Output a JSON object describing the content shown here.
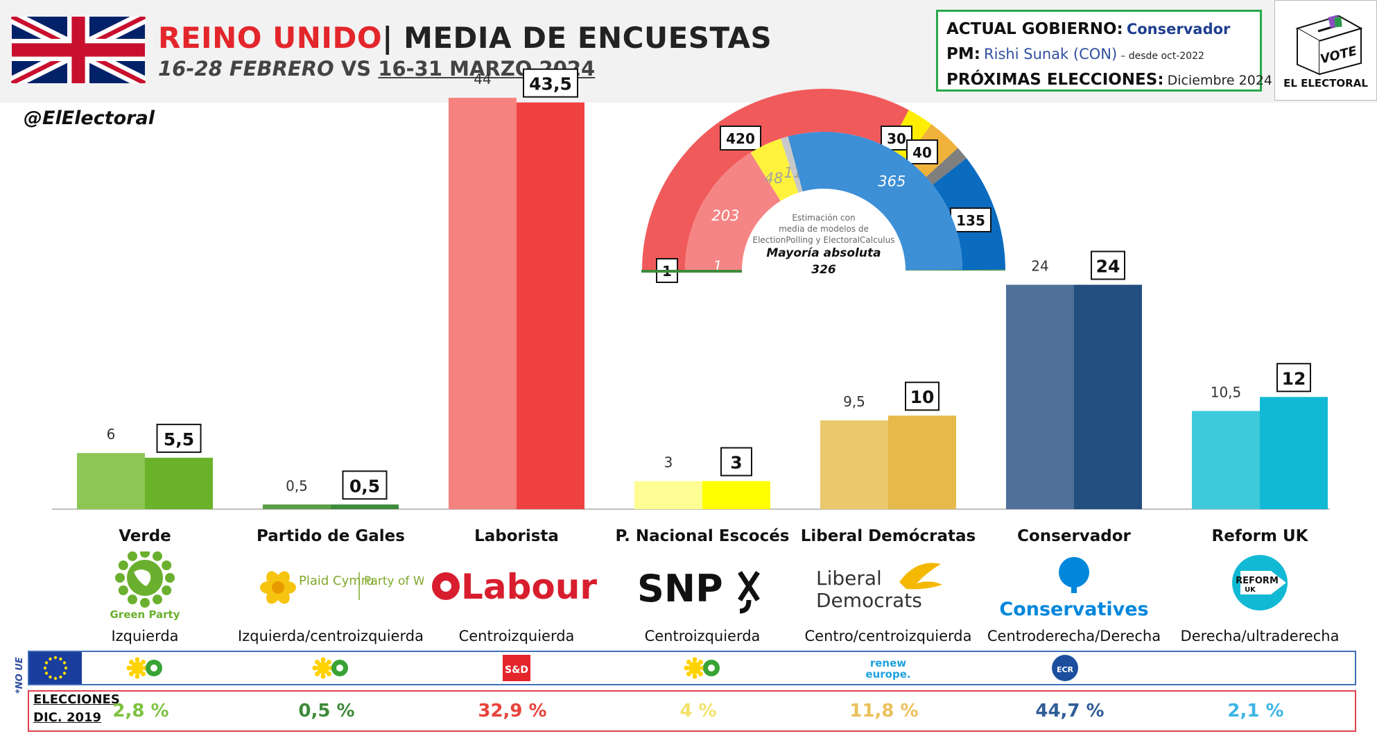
{
  "header": {
    "title_country": "REINO UNIDO",
    "title_separator": "|",
    "title_rest": "MEDIA DE ENCUESTAS",
    "subtitle_a": "16-28 FEBRERO",
    "subtitle_vs": "VS",
    "subtitle_b": "16-31 MARZO 2024"
  },
  "government": {
    "label_gov": "ACTUAL GOBIERNO:",
    "gov_value": "Conservador",
    "label_pm": "PM:",
    "pm_value": "Rishi Sunak (CON)",
    "pm_since": "– desde oct-2022",
    "label_elections": "PRÓXIMAS ELECCIONES:",
    "elections_value": "Diciembre 2024"
  },
  "brand": {
    "vote_text": "VOTE",
    "name": "EL ELECTORAL"
  },
  "handle": "@ElElectoral",
  "chart_data": [
    {
      "type": "bar",
      "categories": [
        "Verde",
        "Partido de Gales",
        "Laborista",
        "P. Nacional Escocés",
        "Liberal Demócratas",
        "Conservador",
        "Reform UK"
      ],
      "series": [
        {
          "values": [
            6,
            0.5,
            44,
            3,
            9.5,
            24,
            10.5
          ],
          "labels": [
            "6",
            "0,5",
            "44",
            "3",
            "9,5",
            "24",
            "10,5"
          ]
        },
        {
          "values": [
            5.5,
            0.5,
            43.5,
            3,
            10,
            24,
            12
          ],
          "labels": [
            "5,5",
            "0,5",
            "43,5",
            "3",
            "10",
            "24",
            "12"
          ]
        }
      ],
      "colors_prev": [
        "#8dc653",
        "#5a9e48",
        "#f5827f",
        "#fdfd94",
        "#eac86c",
        "#4f7098",
        "#3ecadb"
      ],
      "colors_curr": [
        "#6bb22b",
        "#3e8a3a",
        "#ef4140",
        "#ffff00",
        "#e5b94a",
        "#234f80",
        "#12b9d4"
      ],
      "ylim": [
        0,
        46
      ]
    },
    {
      "type": "pie",
      "layout": "hemicycle",
      "outer_ring": [
        {
          "value": 420,
          "label": "420",
          "color": "#f15a5a"
        },
        {
          "value": 30,
          "label": "30",
          "color": "#ffee00"
        },
        {
          "value": 40,
          "label": "40",
          "color": "#f0b23a"
        },
        {
          "value": 15,
          "color": "#7f7f7f"
        },
        {
          "value": 135,
          "label": "135",
          "color": "#0b6cbf"
        },
        {
          "value": 1,
          "label": "1",
          "color": "#3e8a3a"
        }
      ],
      "inner_ring": [
        {
          "value": 203,
          "label": "203",
          "color": "#f58585"
        },
        {
          "value": 48,
          "label": "48",
          "color": "#fff23c"
        },
        {
          "value": 11,
          "label": "11",
          "color": "#c8c8c8"
        },
        {
          "value": 365,
          "label": "365",
          "color": "#3d8fd6"
        },
        {
          "value": 1,
          "label": "1",
          "color": "#3e8a3a"
        }
      ],
      "note": [
        "Estimación con",
        "media de modelos de",
        "ElectionPolling y ElectoralCalculus"
      ],
      "majority_label": "Mayoría absoluta",
      "majority_value": "326"
    }
  ],
  "parties": [
    {
      "name": "Verde",
      "ideology": "Izquierda",
      "logo": "green-party-icon",
      "logo_text": "Green Party",
      "eu_group": "greens-efa-icon",
      "result_2019": "2,8 %",
      "result_color": "#7dc242"
    },
    {
      "name": "Partido de Gales",
      "ideology": "Izquierda/centroizquierda",
      "logo": "plaid-cymru-icon",
      "logo_text_a": "Plaid Cymru",
      "logo_text_b": "Party of Wales",
      "eu_group": "greens-efa-icon",
      "result_2019": "0,5 %",
      "result_color": "#3e8a3a"
    },
    {
      "name": "Laborista",
      "ideology": "Centroizquierda",
      "logo": "labour-rose-icon",
      "logo_text": "Labour",
      "eu_group": "s-and-d-icon",
      "eu_text": "S&D",
      "result_2019": "32,9 %",
      "result_color": "#e8443d"
    },
    {
      "name": "P. Nacional Escocés",
      "ideology": "Centroizquierda",
      "logo": "snp-icon",
      "logo_text": "SNP",
      "eu_group": "greens-efa-icon",
      "result_2019": "4 %",
      "result_color": "#f3e16a"
    },
    {
      "name": "Liberal Demócratas",
      "ideology": "Centro/centroizquierda",
      "logo": "libdem-bird-icon",
      "logo_text_a": "Liberal",
      "logo_text_b": "Democrats",
      "eu_group": "renew-europe-icon",
      "eu_text_a": "renew",
      "eu_text_b": "europe.",
      "result_2019": "11,8 %",
      "result_color": "#eac05c"
    },
    {
      "name": "Conservador",
      "ideology": "Centroderecha/Derecha",
      "logo": "conservatives-tree-icon",
      "logo_text": "Conservatives",
      "eu_group": "ecr-icon",
      "eu_text": "ECR",
      "result_2019": "44,7 %",
      "result_color": "#305d96"
    },
    {
      "name": "Reform UK",
      "ideology": "Derecha/ultraderecha",
      "logo": "reform-uk-icon",
      "logo_text_a": "REFORM",
      "logo_text_b": "UK",
      "eu_group": "",
      "result_2019": "2,1 %",
      "result_color": "#3eb5e5"
    }
  ],
  "eu_row": {
    "side_label": "*NO UE"
  },
  "elections_2019": {
    "label_a": "ELECCIONES",
    "label_b": "DIC. 2019"
  }
}
